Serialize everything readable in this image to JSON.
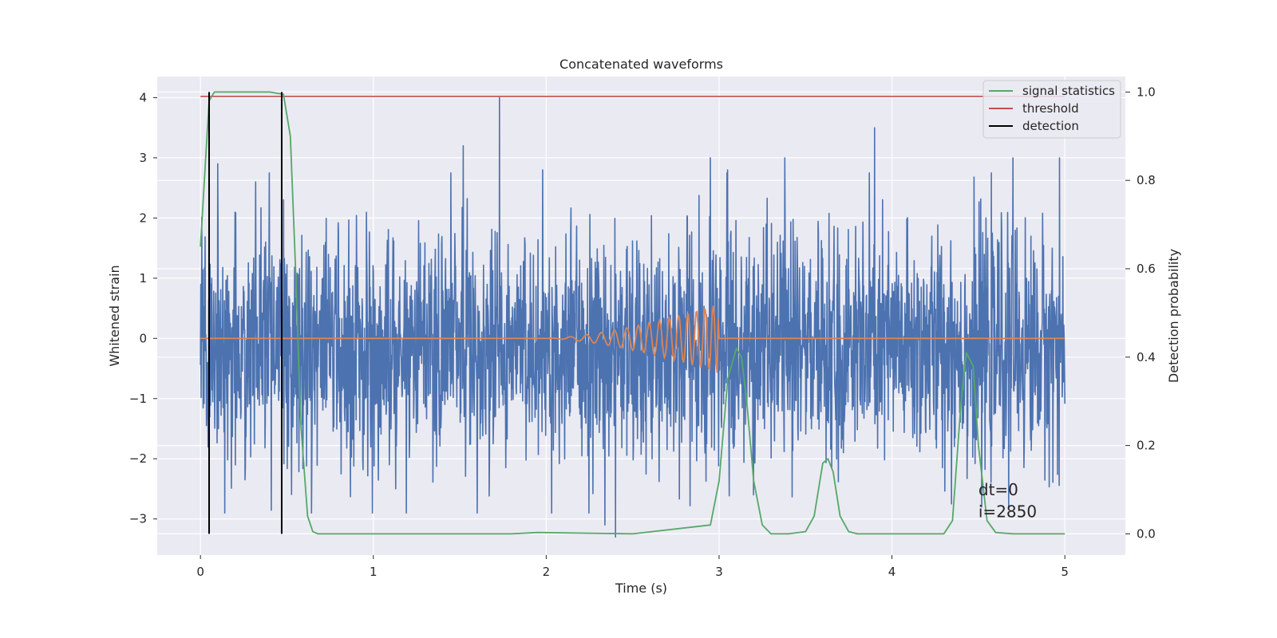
{
  "chart_data": {
    "type": "line",
    "title": "Concatenated waveforms",
    "xlabel": "Time (s)",
    "ylabel": "Whitened strain",
    "ylabel_right": "Detection probability",
    "xlim": [
      -0.25,
      5.35
    ],
    "ylim": [
      -3.6,
      4.35
    ],
    "ylim_right": [
      -0.048,
      1.035
    ],
    "x_ticks": [
      0,
      1,
      2,
      3,
      4,
      5
    ],
    "y_ticks": [
      -3,
      -2,
      -1,
      0,
      1,
      2,
      3,
      4
    ],
    "y_ticks_right": [
      0.0,
      0.2,
      0.4,
      0.6,
      0.8,
      1.0
    ],
    "x_tick_labels": [
      "0",
      "1",
      "2",
      "3",
      "4",
      "5"
    ],
    "y_tick_labels": [
      "−3",
      "−2",
      "−1",
      "0",
      "1",
      "2",
      "3",
      "4"
    ],
    "y_tick_labels_right": [
      "0.0",
      "0.2",
      "0.4",
      "0.6",
      "0.8",
      "1.0"
    ],
    "grid": true,
    "legend_position": "top-right",
    "colors": {
      "strain": "#4c72b0",
      "waveform": "#dd8452",
      "signal_statistics": "#55a868",
      "threshold": "#c44e52",
      "detection": "#000000",
      "background": "#eaeaf2"
    },
    "series": [
      {
        "key": "strain",
        "axis": "left",
        "description_range": [
          -3.3,
          4.0
        ],
        "x_range": [
          0,
          5
        ],
        "peaks": [
          {
            "x": 0.1,
            "y": 2.9
          },
          {
            "x": 0.32,
            "y": 2.6
          },
          {
            "x": 1.52,
            "y": 3.2
          },
          {
            "x": 1.6,
            "y": 3.35
          },
          {
            "x": 1.73,
            "y": 4.0
          },
          {
            "x": 1.98,
            "y": 2.8
          },
          {
            "x": 2.95,
            "y": 3.0
          },
          {
            "x": 3.05,
            "y": 2.8
          },
          {
            "x": 3.38,
            "y": 3.0
          },
          {
            "x": 3.9,
            "y": 3.5
          },
          {
            "x": 4.7,
            "y": 3.0
          },
          {
            "x": 4.97,
            "y": 3.0
          }
        ],
        "troughs": [
          {
            "x": 0.14,
            "y": -2.9
          },
          {
            "x": 1.6,
            "y": -2.9
          },
          {
            "x": 2.34,
            "y": -3.1
          },
          {
            "x": 2.4,
            "y": -3.3
          },
          {
            "x": 3.2,
            "y": -2.6
          },
          {
            "x": 4.52,
            "y": -2.8
          }
        ]
      },
      {
        "key": "waveform",
        "axis": "left",
        "x_start": 2.0,
        "x_end": 3.0,
        "peak_amplitude": 0.58
      },
      {
        "key": "signal_statistics",
        "name": "signal statistics",
        "axis": "right",
        "x": [
          0,
          0.03,
          0.05,
          0.08,
          0.4,
          0.48,
          0.52,
          0.55,
          0.58,
          0.62,
          0.65,
          0.68,
          1.8,
          1.95,
          2.5,
          2.95,
          3.0,
          3.05,
          3.1,
          3.13,
          3.16,
          3.2,
          3.25,
          3.3,
          3.4,
          3.5,
          3.55,
          3.6,
          3.63,
          3.66,
          3.7,
          3.75,
          3.8,
          4.3,
          4.35,
          4.4,
          4.43,
          4.47,
          4.5,
          4.55,
          4.6,
          4.7,
          5.0
        ],
        "y": [
          0.65,
          0.85,
          0.98,
          1.0,
          1.0,
          0.995,
          0.9,
          0.6,
          0.25,
          0.04,
          0.005,
          0.0,
          0.0,
          0.003,
          0.0,
          0.02,
          0.12,
          0.35,
          0.42,
          0.4,
          0.3,
          0.12,
          0.02,
          0.0,
          0.0,
          0.005,
          0.04,
          0.16,
          0.17,
          0.14,
          0.04,
          0.005,
          0.0,
          0.0,
          0.03,
          0.3,
          0.41,
          0.38,
          0.2,
          0.03,
          0.003,
          0.0,
          0.0
        ]
      },
      {
        "key": "threshold",
        "name": "threshold",
        "axis": "right",
        "x": [
          0,
          5
        ],
        "y": [
          0.99,
          0.99
        ]
      },
      {
        "key": "detection",
        "name": "detection",
        "axis": "right",
        "x_values": [
          0.05,
          0.47
        ],
        "y_range": [
          0,
          1
        ]
      }
    ],
    "annotations": [
      {
        "x": 4.5,
        "y_right": 0.1,
        "text": "dt=0"
      },
      {
        "x": 4.5,
        "y_right": 0.05,
        "text": "i=2850"
      }
    ]
  }
}
